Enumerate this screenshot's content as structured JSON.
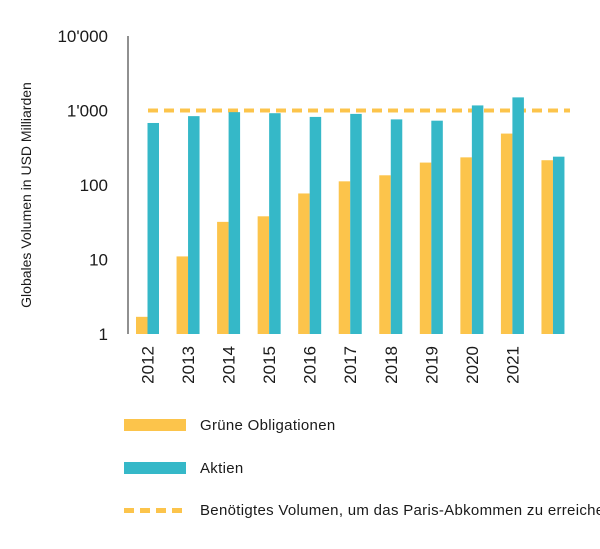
{
  "chart_data": {
    "type": "bar",
    "title": "",
    "xlabel": "",
    "ylabel": "Globales Volumen in USD Milliarden",
    "yscale": "log",
    "ylim": [
      1,
      10000
    ],
    "yticks": [
      1,
      10,
      100,
      1000,
      10000
    ],
    "ytick_labels": [
      "1",
      "10",
      "100",
      "1'000",
      "10'000"
    ],
    "categories": [
      "2012",
      "2013",
      "2014",
      "2015",
      "2016",
      "2017",
      "2018",
      "2019",
      "2020",
      "2021",
      ""
    ],
    "series": [
      {
        "name": "Grüne Obligationen",
        "color": "#fcc44b",
        "values": [
          1.7,
          11,
          32,
          38,
          77,
          112,
          135,
          200,
          235,
          490,
          215
        ]
      },
      {
        "name": "Aktien",
        "color": "#35b8c8",
        "values": [
          680,
          840,
          950,
          920,
          820,
          900,
          760,
          730,
          1170,
          1500,
          240
        ]
      }
    ],
    "reference_line": {
      "name": "Benötigtes Volumen, um das Paris-Abkommen zu erreichen",
      "value": 1000,
      "color": "#fcc44b",
      "style": "dashed"
    },
    "legend": [
      {
        "label": "Grüne Obligationen",
        "color": "#fcc44b",
        "kind": "bar"
      },
      {
        "label": "Aktien",
        "color": "#35b8c8",
        "kind": "bar"
      },
      {
        "label": "Benötigtes Volumen, um das Paris-Abkommen zu erreichen",
        "color": "#fcc44b",
        "kind": "dashed"
      }
    ],
    "legend_position": "bottom"
  }
}
